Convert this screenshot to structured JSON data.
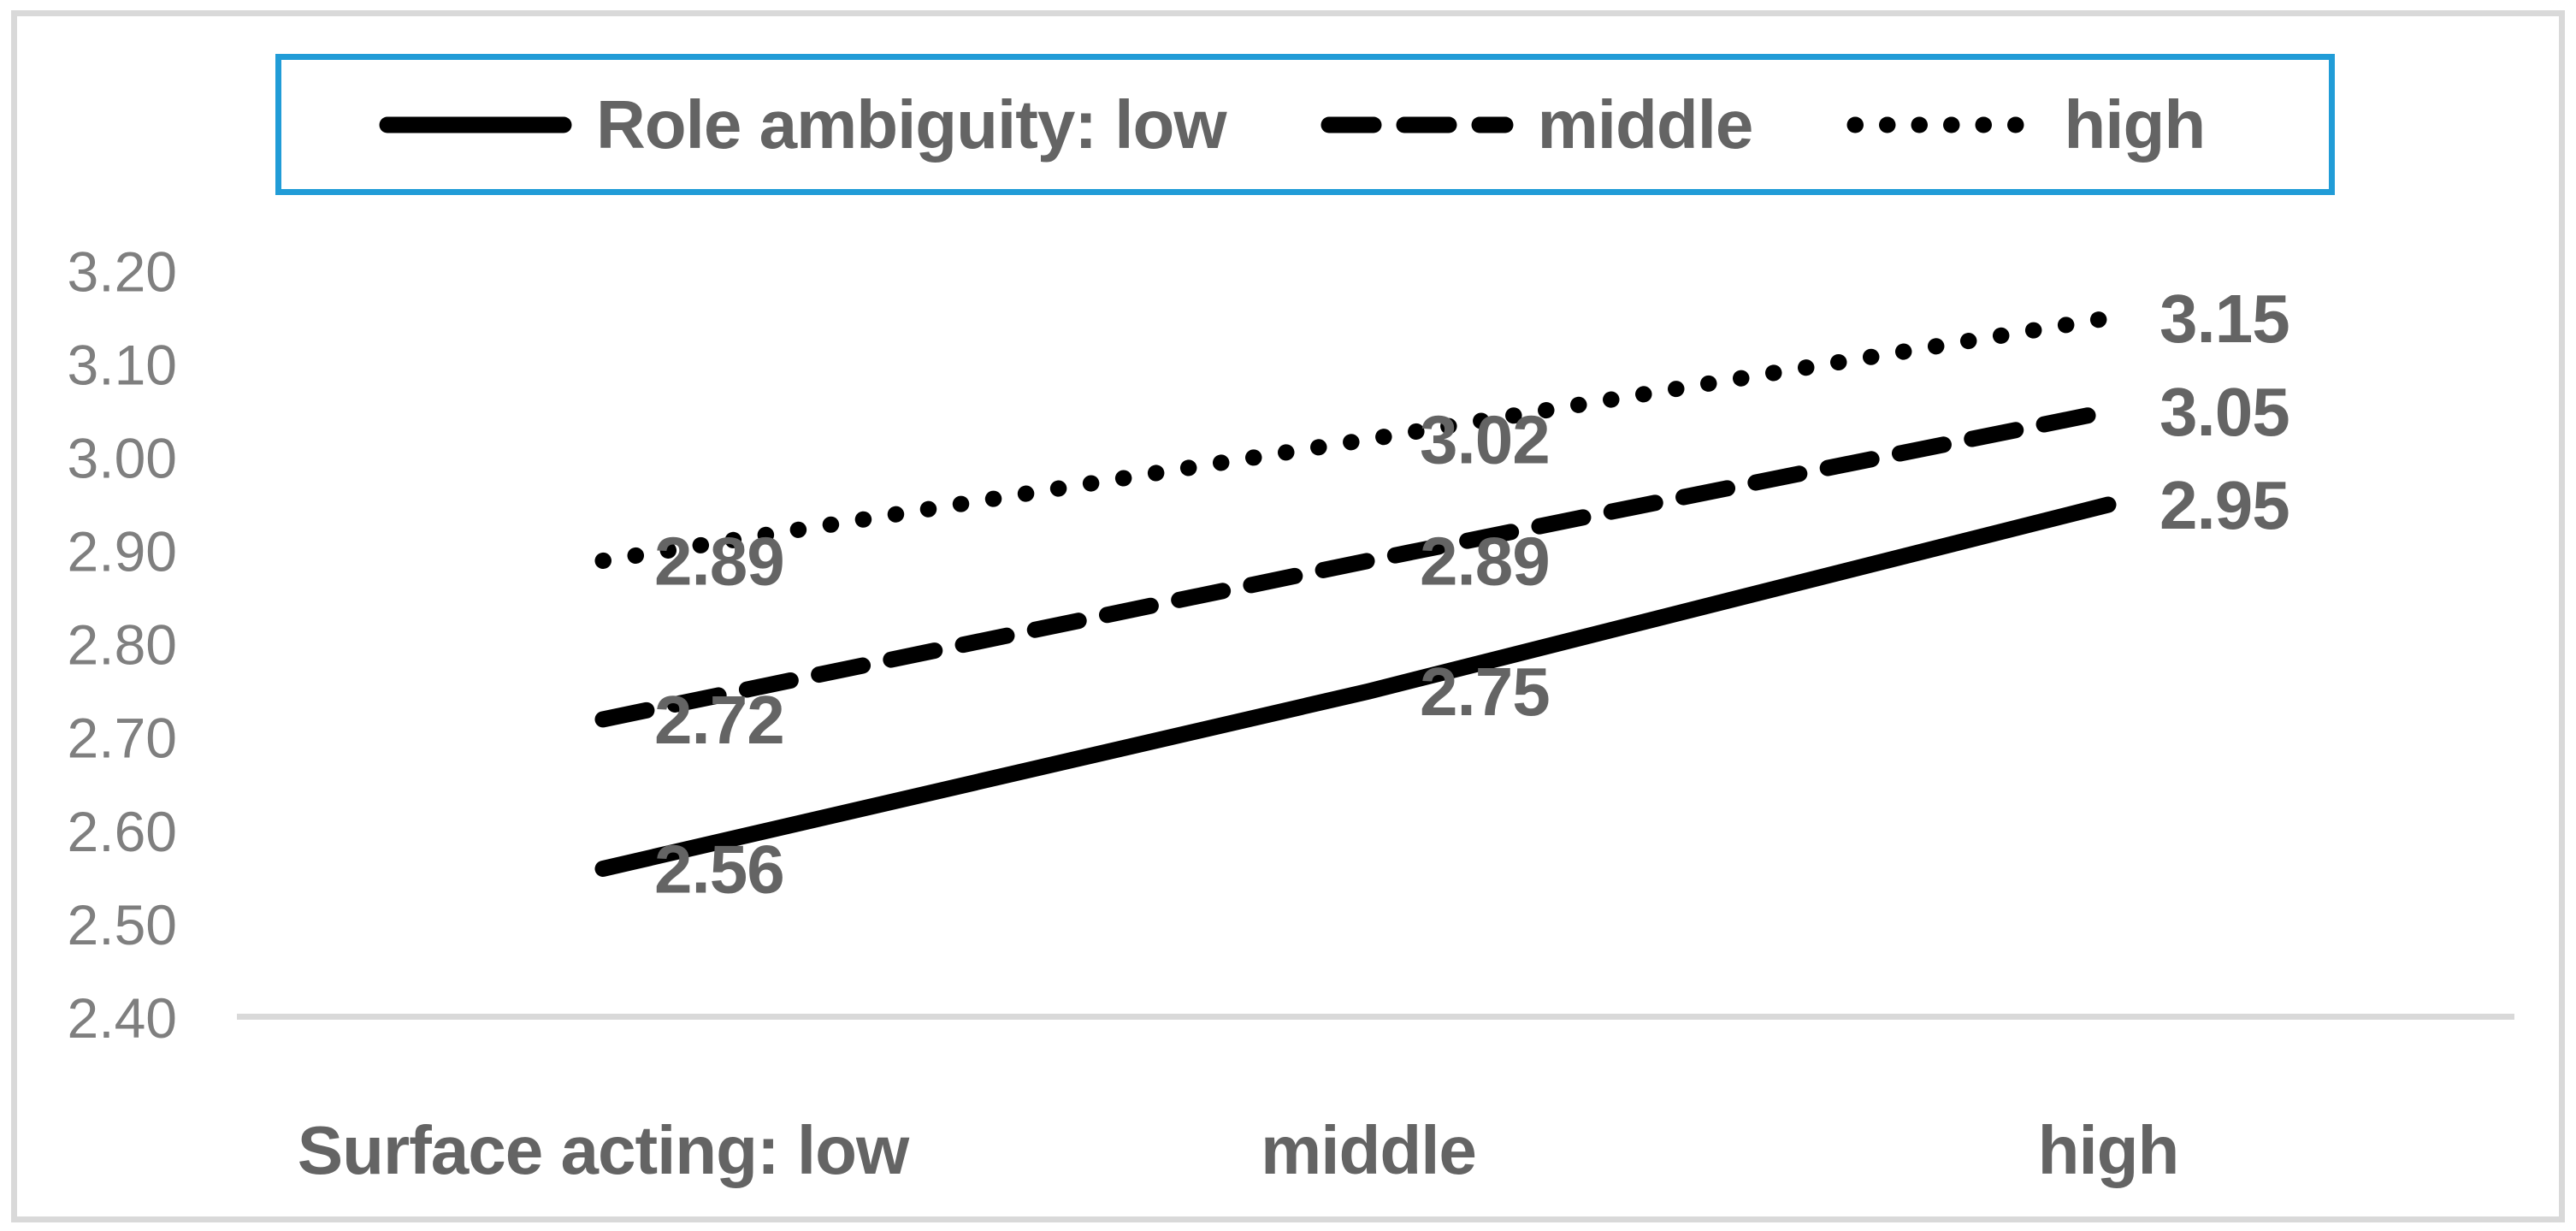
{
  "colors": {
    "legend_border": "#219CD7",
    "line": "#000000",
    "axis_line": "#D9D9D9",
    "frame_border": "#D9D9D9",
    "tick_text": "#7f7f7f",
    "label_text": "#646464"
  },
  "legend": {
    "items": [
      {
        "label": "Role ambiguity: low",
        "style": "solid"
      },
      {
        "label": "middle",
        "style": "dashed"
      },
      {
        "label": "high",
        "style": "dotted"
      }
    ]
  },
  "chart_data": {
    "type": "line",
    "categories": [
      "Surface acting: low",
      "middle",
      "high"
    ],
    "series": [
      {
        "name": "Role ambiguity: low",
        "style": "solid",
        "values": [
          2.56,
          2.75,
          2.95
        ]
      },
      {
        "name": "Role ambiguity: middle",
        "style": "dashed",
        "values": [
          2.72,
          2.89,
          3.05
        ]
      },
      {
        "name": "Role ambiguity: high",
        "style": "dotted",
        "values": [
          2.89,
          3.02,
          3.15
        ]
      }
    ],
    "y_ticks": [
      "3.20",
      "3.10",
      "3.00",
      "2.90",
      "2.80",
      "2.70",
      "2.60",
      "2.50",
      "2.40"
    ],
    "ylim": [
      2.4,
      3.2
    ],
    "xlabel": "",
    "ylabel": "",
    "title": "",
    "grid": false,
    "legend_position": "top",
    "data_labels_visible": true
  }
}
